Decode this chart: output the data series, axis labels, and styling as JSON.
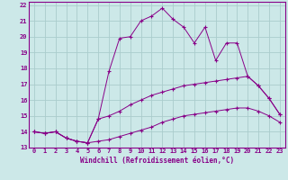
{
  "xlabel": "Windchill (Refroidissement éolien,°C)",
  "bg_color": "#cce8e8",
  "grid_color": "#aacccc",
  "line_color": "#880088",
  "xlim": [
    -0.5,
    23.5
  ],
  "ylim": [
    13,
    22.2
  ],
  "yticks": [
    13,
    14,
    15,
    16,
    17,
    18,
    19,
    20,
    21,
    22
  ],
  "xticks": [
    0,
    1,
    2,
    3,
    4,
    5,
    6,
    7,
    8,
    9,
    10,
    11,
    12,
    13,
    14,
    15,
    16,
    17,
    18,
    19,
    20,
    21,
    22,
    23
  ],
  "line1_x": [
    0,
    1,
    2,
    3,
    4,
    5,
    6,
    7,
    8,
    9,
    10,
    11,
    12,
    13,
    14,
    15,
    16,
    17,
    18,
    19,
    20,
    21,
    22,
    23
  ],
  "line1_y": [
    14.0,
    13.9,
    14.0,
    13.6,
    13.4,
    13.3,
    14.8,
    17.8,
    19.9,
    20.0,
    21.0,
    21.3,
    21.8,
    21.1,
    20.6,
    19.6,
    20.6,
    18.5,
    19.6,
    19.6,
    17.5,
    16.9,
    16.1,
    15.1
  ],
  "line2_x": [
    0,
    1,
    2,
    3,
    4,
    5,
    6,
    7,
    8,
    9,
    10,
    11,
    12,
    13,
    14,
    15,
    16,
    17,
    18,
    19,
    20,
    21,
    22,
    23
  ],
  "line2_y": [
    14.0,
    13.9,
    14.0,
    13.6,
    13.4,
    13.3,
    14.8,
    15.0,
    15.3,
    15.7,
    16.0,
    16.3,
    16.5,
    16.7,
    16.9,
    17.0,
    17.1,
    17.2,
    17.3,
    17.4,
    17.5,
    16.9,
    16.1,
    15.1
  ],
  "line3_x": [
    0,
    1,
    2,
    3,
    4,
    5,
    6,
    7,
    8,
    9,
    10,
    11,
    12,
    13,
    14,
    15,
    16,
    17,
    18,
    19,
    20,
    21,
    22,
    23
  ],
  "line3_y": [
    14.0,
    13.9,
    14.0,
    13.6,
    13.4,
    13.3,
    13.4,
    13.5,
    13.7,
    13.9,
    14.1,
    14.3,
    14.6,
    14.8,
    15.0,
    15.1,
    15.2,
    15.3,
    15.4,
    15.5,
    15.5,
    15.3,
    15.0,
    14.6
  ],
  "tick_fontsize": 5.0,
  "xlabel_fontsize": 5.5
}
